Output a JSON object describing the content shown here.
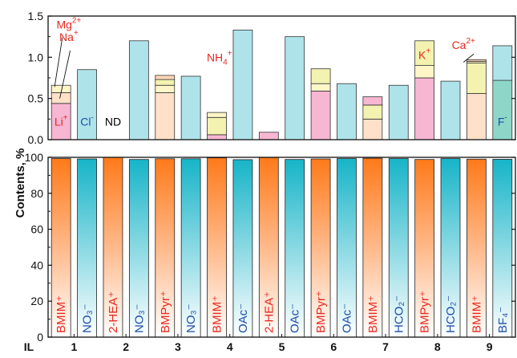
{
  "chart_data": {
    "type": "bar",
    "ylabel": "Contents, %",
    "x_title": "IL",
    "groups": [
      "1",
      "2",
      "3",
      "4",
      "5",
      "6",
      "7",
      "8",
      "9"
    ],
    "colors": {
      "Li": "#f7b6d2",
      "Na": "#ffe0c8",
      "Mg": "#fff6c8",
      "NH4": "#f3f2b0",
      "K": "#fff0a8",
      "Ca": "#fcd6b8",
      "anion_light": "#aee3ea",
      "F_fill": "#8ed7c8",
      "cation_text": "#e8281f",
      "anion_text": "#1f4fa8",
      "cation_gradient_top": "#ff7a1a",
      "anion_gradient_top": "#17b4c8"
    },
    "upper": {
      "ylim": [
        0,
        1.5
      ],
      "yticks": [
        "0.0",
        "0.5",
        "1.0",
        "1.5"
      ],
      "bars": [
        {
          "pos": 1,
          "segments": [
            {
              "ion": "Li",
              "value": 0.44
            },
            {
              "ion": "Na",
              "value": 0.13
            },
            {
              "ion": "Mg",
              "value": 0.09
            }
          ]
        },
        {
          "pos": 2,
          "segments": [
            {
              "ion": "Cl",
              "value": 0.85
            }
          ]
        },
        {
          "pos": 3,
          "segments": []
        },
        {
          "pos": 4,
          "segments": [
            {
              "ion": "Cl",
              "value": 1.2
            }
          ]
        },
        {
          "pos": 5,
          "segments": [
            {
              "ion": "Na",
              "value": 0.57
            },
            {
              "ion": "Mg",
              "value": 0.09
            },
            {
              "ion": "NH4",
              "value": 0.07
            },
            {
              "ion": "Ca",
              "value": 0.05
            }
          ]
        },
        {
          "pos": 6,
          "segments": [
            {
              "ion": "Cl",
              "value": 0.77
            }
          ]
        },
        {
          "pos": 7,
          "segments": [
            {
              "ion": "Li",
              "value": 0.06
            },
            {
              "ion": "NH4",
              "value": 0.21
            },
            {
              "ion": "Mg",
              "value": 0.06
            }
          ]
        },
        {
          "pos": 8,
          "segments": [
            {
              "ion": "Cl",
              "value": 1.33
            }
          ]
        },
        {
          "pos": 9,
          "segments": [
            {
              "ion": "Li",
              "value": 0.09
            }
          ]
        },
        {
          "pos": 10,
          "segments": [
            {
              "ion": "Cl",
              "value": 1.25
            }
          ]
        },
        {
          "pos": 11,
          "segments": [
            {
              "ion": "Li",
              "value": 0.59
            },
            {
              "ion": "Mg",
              "value": 0.09
            },
            {
              "ion": "NH4",
              "value": 0.18
            }
          ]
        },
        {
          "pos": 12,
          "segments": [
            {
              "ion": "Cl",
              "value": 0.68
            }
          ]
        },
        {
          "pos": 13,
          "segments": [
            {
              "ion": "Na",
              "value": 0.25
            },
            {
              "ion": "NH4",
              "value": 0.17
            },
            {
              "ion": "Li",
              "value": 0.1
            }
          ]
        },
        {
          "pos": 14,
          "segments": [
            {
              "ion": "Cl",
              "value": 0.66
            }
          ]
        },
        {
          "pos": 15,
          "segments": [
            {
              "ion": "Li",
              "value": 0.75
            },
            {
              "ion": "Mg",
              "value": 0.15
            },
            {
              "ion": "NH4",
              "value": 0.3
            }
          ]
        },
        {
          "pos": 16,
          "segments": [
            {
              "ion": "Cl",
              "value": 0.71
            }
          ]
        },
        {
          "pos": 17,
          "segments": [
            {
              "ion": "Na",
              "value": 0.56
            },
            {
              "ion": "NH4",
              "value": 0.37
            },
            {
              "ion": "Mg",
              "value": 0.02
            },
            {
              "ion": "Ca",
              "value": 0.02
            }
          ]
        },
        {
          "pos": 18,
          "segments": [
            {
              "ion": "F",
              "value": 0.72
            },
            {
              "ion": "Cl",
              "value": 0.42
            }
          ]
        }
      ],
      "labels": [
        {
          "text": "Mg",
          "sup": "2+",
          "color": "cation",
          "x": 1.3,
          "y": 1.35
        },
        {
          "text": "Na",
          "sup": "+",
          "color": "cation",
          "x": 1.3,
          "y": 1.2
        },
        {
          "text": "Li",
          "sup": "+",
          "color": "cation",
          "x": 1.0,
          "y": 0.17
        },
        {
          "text": "Cl",
          "sup": "-",
          "color": "anion",
          "x": 2.0,
          "y": 0.17
        },
        {
          "text": "ND",
          "sup": "",
          "color": "black",
          "x": 3.0,
          "y": 0.17
        },
        {
          "text": "NH",
          "sub": "4",
          "sup": "+",
          "color": "cation",
          "x": 7.1,
          "y": 0.95
        },
        {
          "text": "K",
          "sup": "+",
          "color": "cation",
          "x": 15.0,
          "y": 0.98
        },
        {
          "text": "Ca",
          "sup": "2+",
          "color": "cation",
          "x": 16.5,
          "y": 1.1
        },
        {
          "text": "F",
          "sup": "-",
          "color": "anion",
          "x": 18.0,
          "y": 0.17
        }
      ],
      "leaders": [
        {
          "x1": 1.05,
          "y1": 1.24,
          "x2": 0.75,
          "y2": 0.64
        },
        {
          "x1": 1.35,
          "y1": 1.08,
          "x2": 0.95,
          "y2": 0.5
        },
        {
          "x1": 16.9,
          "y1": 1.04,
          "x2": 16.5,
          "y2": 0.94
        }
      ]
    },
    "lower": {
      "ylim": [
        0,
        100
      ],
      "yticks": [
        "0",
        "20",
        "40",
        "60",
        "80",
        "100"
      ],
      "bars": [
        {
          "pos": 1,
          "kind": "cation",
          "value": 99.3,
          "label": "BMIM⁺"
        },
        {
          "pos": 2,
          "kind": "anion",
          "value": 99.1,
          "label": "NO₃⁻"
        },
        {
          "pos": 3,
          "kind": "cation",
          "value": 100,
          "label": "2-HEA⁺"
        },
        {
          "pos": 4,
          "kind": "anion",
          "value": 98.8,
          "label": "NO₃⁻"
        },
        {
          "pos": 5,
          "kind": "cation",
          "value": 99.2,
          "label": "BMPyr⁺"
        },
        {
          "pos": 6,
          "kind": "anion",
          "value": 99.2,
          "label": "NO₃⁻"
        },
        {
          "pos": 7,
          "kind": "cation",
          "value": 99.7,
          "label": "BMIM⁺"
        },
        {
          "pos": 8,
          "kind": "anion",
          "value": 98.7,
          "label": "OAc⁻"
        },
        {
          "pos": 9,
          "kind": "cation",
          "value": 99.9,
          "label": "2-HEA⁺"
        },
        {
          "pos": 10,
          "kind": "anion",
          "value": 98.8,
          "label": "OAc⁻"
        },
        {
          "pos": 11,
          "kind": "cation",
          "value": 99.1,
          "label": "BMPyr⁺"
        },
        {
          "pos": 12,
          "kind": "anion",
          "value": 99.3,
          "label": "OAc⁻"
        },
        {
          "pos": 13,
          "kind": "cation",
          "value": 99.5,
          "label": "BMIM⁺"
        },
        {
          "pos": 14,
          "kind": "anion",
          "value": 99.3,
          "label": "HCO₂⁻"
        },
        {
          "pos": 15,
          "kind": "cation",
          "value": 98.8,
          "label": "BMPyr⁺"
        },
        {
          "pos": 16,
          "kind": "anion",
          "value": 99.3,
          "label": "HCO₂⁻"
        },
        {
          "pos": 17,
          "kind": "cation",
          "value": 99.0,
          "label": "BMIM⁺"
        },
        {
          "pos": 18,
          "kind": "anion",
          "value": 98.9,
          "label": "BF₄⁻"
        }
      ]
    }
  }
}
